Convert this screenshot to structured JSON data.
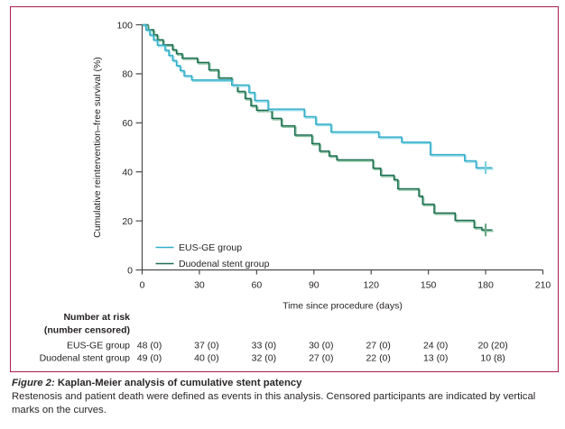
{
  "figure": {
    "caption_label": "Figure 2:",
    "caption_title": "Kaplan-Meier analysis of cumulative stent patency",
    "caption_body_line1": "Restenosis and patient death were defined as events in this analysis. Censored participants are indicated by vertical",
    "caption_body_line2": "marks on the curves."
  },
  "chart_data": {
    "type": "line",
    "subtype": "kaplan-meier-step",
    "title": "",
    "xlabel": "Time since procedure (days)",
    "ylabel": "Cumulative reintervention–free survival (%)",
    "xlim": [
      0,
      210
    ],
    "ylim": [
      0,
      100
    ],
    "x_ticks": [
      0,
      30,
      60,
      90,
      120,
      150,
      180,
      210
    ],
    "y_ticks": [
      0,
      20,
      40,
      60,
      80,
      100
    ],
    "grid": "off",
    "legend_position": "inside-lower-left",
    "series": [
      {
        "name": "Duodenal stent group",
        "color": "#1D6E53",
        "shadow_color": "#8EC4A2",
        "censor_color": "#6BAA88",
        "censor_times": [
          180
        ],
        "x": [
          0,
          3,
          6,
          8,
          11,
          16,
          18,
          21,
          29,
          35,
          40,
          47,
          50,
          54,
          57,
          60,
          68,
          73,
          80,
          89,
          93,
          98,
          102,
          121,
          125,
          132,
          134,
          145,
          147,
          153,
          164,
          174,
          178
        ],
        "y": [
          100,
          98.0,
          95.9,
          93.9,
          91.8,
          89.8,
          88.2,
          86.4,
          84.6,
          81.6,
          78.3,
          75.4,
          72.8,
          69.9,
          67.0,
          65.1,
          61.8,
          58.8,
          55.0,
          51.5,
          48.5,
          46.5,
          44.9,
          41.5,
          38.6,
          36.8,
          33.1,
          30.1,
          26.8,
          23.2,
          20.2,
          17.3,
          16.3
        ]
      },
      {
        "name": "EUS-GE group",
        "color": "#33ADC7",
        "shadow_color": "#9ADEE9",
        "censor_color": "#7FD1E0",
        "censor_times": [
          180
        ],
        "x": [
          0,
          2,
          4,
          6,
          8,
          12,
          14,
          16,
          18,
          20,
          22,
          26,
          47,
          56,
          59,
          66,
          85,
          91,
          99,
          124,
          136,
          151,
          169,
          175
        ],
        "y": [
          100,
          97.9,
          95.8,
          93.8,
          91.7,
          89.6,
          87.5,
          85.4,
          83.3,
          81.3,
          79.2,
          77.5,
          75.4,
          72.4,
          69.1,
          65.6,
          62.5,
          59.4,
          56.3,
          54.2,
          52.1,
          47.0,
          44.5,
          41.7
        ]
      }
    ]
  },
  "legend": {
    "entries": [
      "EUS-GE group",
      "Duodenal stent group"
    ]
  },
  "risk_table": {
    "header_line1": "Number at risk",
    "header_line2": "(number censored)",
    "time_points": [
      0,
      30,
      60,
      90,
      120,
      150,
      180
    ],
    "rows": [
      {
        "label": "EUS-GE group",
        "values": [
          "48 (0)",
          "37 (0)",
          "33 (0)",
          "30 (0)",
          "27 (0)",
          "24 (0)",
          "20 (20)"
        ]
      },
      {
        "label": "Duodenal stent group",
        "values": [
          "49 (0)",
          "40 (0)",
          "32 (0)",
          "27 (0)",
          "22 (0)",
          "13 (0)",
          "10 (8)"
        ]
      }
    ]
  },
  "colors": {
    "figure_border": "#A81E4F",
    "axis": "#4A4A4A",
    "text": "#231F20",
    "eus_ge_line": "#33ADC7",
    "duodenal_line": "#1D6E53"
  }
}
